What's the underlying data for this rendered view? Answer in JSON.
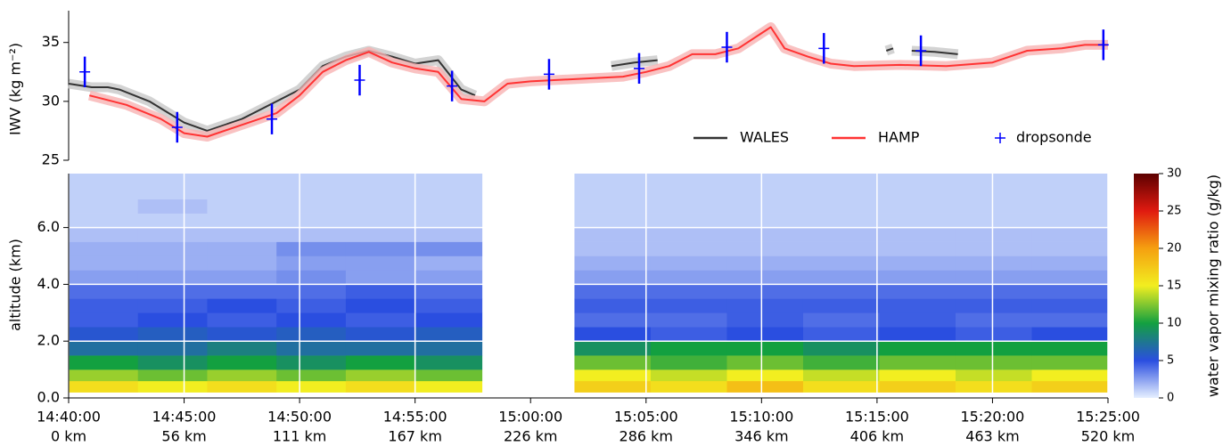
{
  "chart_data": [
    {
      "type": "line",
      "ylabel": "IWV (kg m⁻²)",
      "xlim": [
        0,
        45
      ],
      "ylim": [
        25,
        37.7
      ],
      "yticks": [
        25,
        30,
        35
      ],
      "legend": "lower right",
      "series": [
        {
          "name": "WALES",
          "color": "#333333",
          "x": [
            0,
            1,
            1.7,
            2.2,
            3.5,
            5,
            6,
            7.5,
            9,
            10,
            11,
            12,
            13,
            14,
            15,
            16,
            17,
            17.6,
            18.5,
            23.5,
            24.5,
            25.5,
            26,
            35.4,
            35.7,
            36,
            36.5,
            37.5,
            38.5
          ],
          "values": [
            31.5,
            31.2,
            31.2,
            31.0,
            30.0,
            28.2,
            27.5,
            28.5,
            30.0,
            31.0,
            33.0,
            33.8,
            34.3,
            33.8,
            33.2,
            33.5,
            31.0,
            30.5,
            null,
            33.0,
            33.3,
            33.5,
            null,
            34.3,
            34.5,
            null,
            34.3,
            34.2,
            34.0
          ]
        },
        {
          "name": "HAMP",
          "color": "#ff3333",
          "band_color": "#f7b3b3",
          "x": [
            0.9,
            2.5,
            4,
            5,
            6,
            7.5,
            9,
            10,
            11,
            12,
            13,
            14,
            15,
            16,
            17,
            18,
            19,
            20,
            22,
            24,
            25,
            26,
            27,
            28,
            29,
            30.4,
            31,
            32,
            33,
            34,
            36,
            38,
            40,
            41.5,
            43,
            44,
            45
          ],
          "values": [
            30.5,
            29.7,
            28.5,
            27.3,
            27.0,
            28.0,
            29.0,
            30.5,
            32.5,
            33.5,
            34.2,
            33.3,
            32.8,
            32.5,
            30.2,
            30.0,
            31.5,
            31.7,
            31.9,
            32.1,
            32.5,
            33.0,
            34.0,
            34.0,
            34.5,
            36.3,
            34.5,
            33.8,
            33.2,
            33.0,
            33.1,
            33.0,
            33.3,
            34.3,
            34.5,
            34.8,
            34.8
          ]
        },
        {
          "name": "dropsonde",
          "color": "#0000ff",
          "marker": "+",
          "x": [
            0.7,
            4.7,
            8.8,
            12.6,
            16.6,
            20.8,
            24.7,
            28.5,
            32.7,
            36.9,
            44.8
          ],
          "values": [
            32.5,
            27.8,
            28.5,
            31.8,
            31.3,
            32.3,
            32.8,
            34.6,
            34.5,
            34.3,
            34.8
          ],
          "errors": [
            1.3,
            1.3,
            1.3,
            1.3,
            1.3,
            1.3,
            1.3,
            1.3,
            1.3,
            1.3,
            1.3
          ]
        }
      ]
    },
    {
      "type": "heatmap",
      "ylabel": "altitude (km)",
      "xlim": [
        0,
        45
      ],
      "ylim": [
        0,
        7.9
      ],
      "yticks": [
        {
          "value": 0,
          "label": "0.0"
        },
        {
          "value": 2,
          "label": "2.0"
        },
        {
          "value": 4,
          "label": "4.0"
        },
        {
          "value": 6,
          "label": "6.0"
        }
      ],
      "xticks": [
        {
          "value": 0,
          "label": "14:40:00"
        },
        {
          "value": 5,
          "label": "14:45:00"
        },
        {
          "value": 10,
          "label": "14:50:00"
        },
        {
          "value": 15,
          "label": "14:55:00"
        },
        {
          "value": 20,
          "label": "15:00:00"
        },
        {
          "value": 25,
          "label": "15:05:00"
        },
        {
          "value": 30,
          "label": "15:10:00"
        },
        {
          "value": 35,
          "label": "15:15:00"
        },
        {
          "value": 40,
          "label": "15:20:00"
        },
        {
          "value": 45,
          "label": "15:25:00"
        }
      ],
      "xticks_km": [
        {
          "value": 0,
          "label": "0 km"
        },
        {
          "value": 5,
          "label": "56 km"
        },
        {
          "value": 10,
          "label": "111 km"
        },
        {
          "value": 15,
          "label": "167 km"
        },
        {
          "value": 20,
          "label": "226 km"
        },
        {
          "value": 25,
          "label": "286 km"
        },
        {
          "value": 30,
          "label": "346 km"
        },
        {
          "value": 35,
          "label": "406 km"
        },
        {
          "value": 40,
          "label": "463 km"
        },
        {
          "value": 45,
          "label": "520 km"
        }
      ],
      "grid": true,
      "x_edges": [
        0,
        3,
        6,
        9,
        12,
        15,
        17.9,
        21.9,
        25.2,
        28.5,
        31.8,
        35.1,
        38.4,
        41.7,
        45
      ],
      "y_edges": [
        0.2,
        0.6,
        1.0,
        1.5,
        2.0,
        2.5,
        3.0,
        3.5,
        4.0,
        4.5,
        5.0,
        5.5,
        6.0,
        6.5,
        7.0,
        7.9
      ],
      "z": [
        [
          16,
          15,
          16,
          15,
          16,
          15,
          null,
          17,
          16,
          18,
          16,
          17,
          16,
          17
        ],
        [
          13,
          12,
          13,
          12,
          13,
          12,
          null,
          15,
          14,
          15,
          14,
          15,
          14,
          15
        ],
        [
          10,
          9,
          10,
          9,
          10,
          9,
          null,
          12,
          11,
          12,
          11,
          12,
          12,
          12
        ],
        [
          7,
          7,
          8,
          7,
          7,
          7,
          null,
          9,
          10,
          10,
          9,
          10,
          10,
          10
        ],
        [
          5.5,
          6,
          5.5,
          6,
          5.5,
          6,
          null,
          5,
          4.5,
          5,
          4.5,
          5,
          4.5,
          5
        ],
        [
          4.5,
          5,
          4.5,
          5,
          4.5,
          5,
          null,
          4,
          4,
          4.5,
          4,
          4.5,
          4,
          4
        ],
        [
          4.5,
          4.5,
          5,
          4.5,
          5,
          4.5,
          null,
          4.5,
          4.5,
          4.5,
          4.5,
          4.5,
          4.5,
          4.5
        ],
        [
          4,
          4,
          4,
          4,
          4.5,
          4,
          null,
          4,
          4,
          4,
          4,
          4,
          4,
          4
        ],
        [
          2.5,
          2.5,
          2.5,
          3,
          2.5,
          2.5,
          null,
          2.5,
          2.5,
          2.5,
          2.5,
          2.5,
          2.5,
          2.5
        ],
        [
          2,
          2,
          2,
          2.5,
          2.5,
          2,
          null,
          2,
          2,
          2,
          2,
          2,
          2,
          2
        ],
        [
          2,
          2,
          2,
          3,
          3,
          3,
          null,
          1.5,
          1.5,
          1.5,
          1.5,
          1.5,
          1.5,
          1.5
        ],
        [
          1.5,
          1.5,
          1.5,
          1.5,
          1.5,
          1.5,
          null,
          1.5,
          1.5,
          1.5,
          1.5,
          1.5,
          1.5,
          1.5
        ],
        [
          1,
          1,
          1,
          1,
          1,
          1,
          null,
          1,
          1,
          1,
          1,
          1,
          1,
          1
        ],
        [
          1,
          1.5,
          1,
          1,
          1,
          1,
          null,
          1,
          1,
          1,
          1,
          1,
          1,
          1
        ],
        [
          1,
          1,
          1,
          1,
          1,
          1,
          null,
          1,
          1,
          1,
          1,
          1,
          1,
          1
        ]
      ],
      "zlim": [
        0,
        30
      ],
      "zticks": [
        0,
        5,
        10,
        15,
        20,
        25,
        30
      ],
      "colorbar_label": "water vapor mixing ratio (g/kg)",
      "colormap": [
        "#e6f0ff",
        "#2a4ee0",
        "#13a040",
        "#f2ee20",
        "#f5a010",
        "#e01a10",
        "#5c0000"
      ]
    }
  ]
}
